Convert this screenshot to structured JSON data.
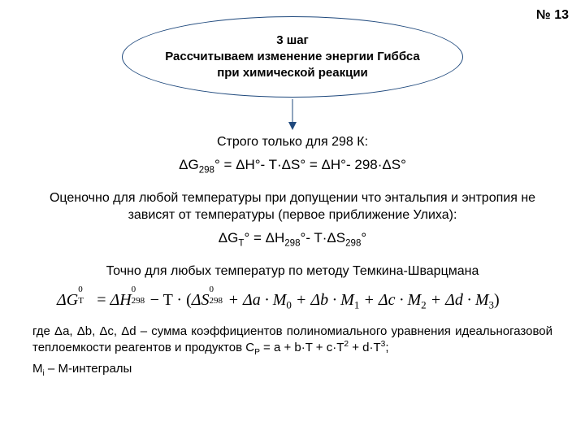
{
  "slideNumber": "№ 13",
  "ellipse": {
    "line1": "3 шаг",
    "line2": "Рассчитываем изменение энергии Гиббса",
    "line3": "при химической реакции",
    "borderColor": "#1f497d"
  },
  "arrow": {
    "color": "#1f497d",
    "length": 38
  },
  "section1": {
    "intro": "Строго только для 298 К:",
    "eq_pre": "ΔG",
    "eq_sub": "298",
    "eq_rest": "° = ΔH°- T·ΔS° = ΔH°- 298·ΔS°"
  },
  "section2": {
    "intro": "Оценочно для любой температуры при допущении что энтальпия и энтропия не зависят от температуры (первое приближение Улиха):",
    "eq_pre1": "ΔG",
    "eq_sub1": "T",
    "eq_mid1": "° = ΔH",
    "eq_sub2": "298",
    "eq_mid2": "°- T·ΔS",
    "eq_sub3": "298",
    "eq_post": "°"
  },
  "section3": {
    "intro": "Точно для любых температур по методу Темкина-Шварцмана"
  },
  "tsEq": {
    "font": "'Times New Roman', serif",
    "fontSize": 20,
    "lhs_pre": "ΔG",
    "lhs_sub": "T",
    "lhs_sup": "0",
    "eq": " = ",
    "H_pre": "ΔH",
    "H_sub": "298",
    "H_sup": "0",
    "minusT": " − T · ",
    "openParen": "(",
    "S_pre": "ΔS",
    "S_sub": "298",
    "S_sup": "0",
    "terms": " + Δa · M",
    "m0": "0",
    "t1": " + Δb · M",
    "m1": "1",
    "t2": " + Δc · M",
    "m2": "2",
    "t3": " + Δd · M",
    "m3": "3",
    "closeParen": ")"
  },
  "footer": {
    "line1_pre": "где Δa, Δb, Δc, Δd – сумма коэффициентов полиномиального уравнения идеальногазовой теплоемкости реагентов и продуктов C",
    "cp_sub": "P",
    "line1_post": " = a + b·T + c·T",
    "sq": "2",
    "line1_post2": " + d·T",
    "cu": "3",
    "line1_end": ";",
    "line2_pre": "M",
    "mi_sub": "i",
    "line2_post": " – M-интегралы"
  },
  "colors": {
    "text": "#000000",
    "background": "#ffffff"
  }
}
